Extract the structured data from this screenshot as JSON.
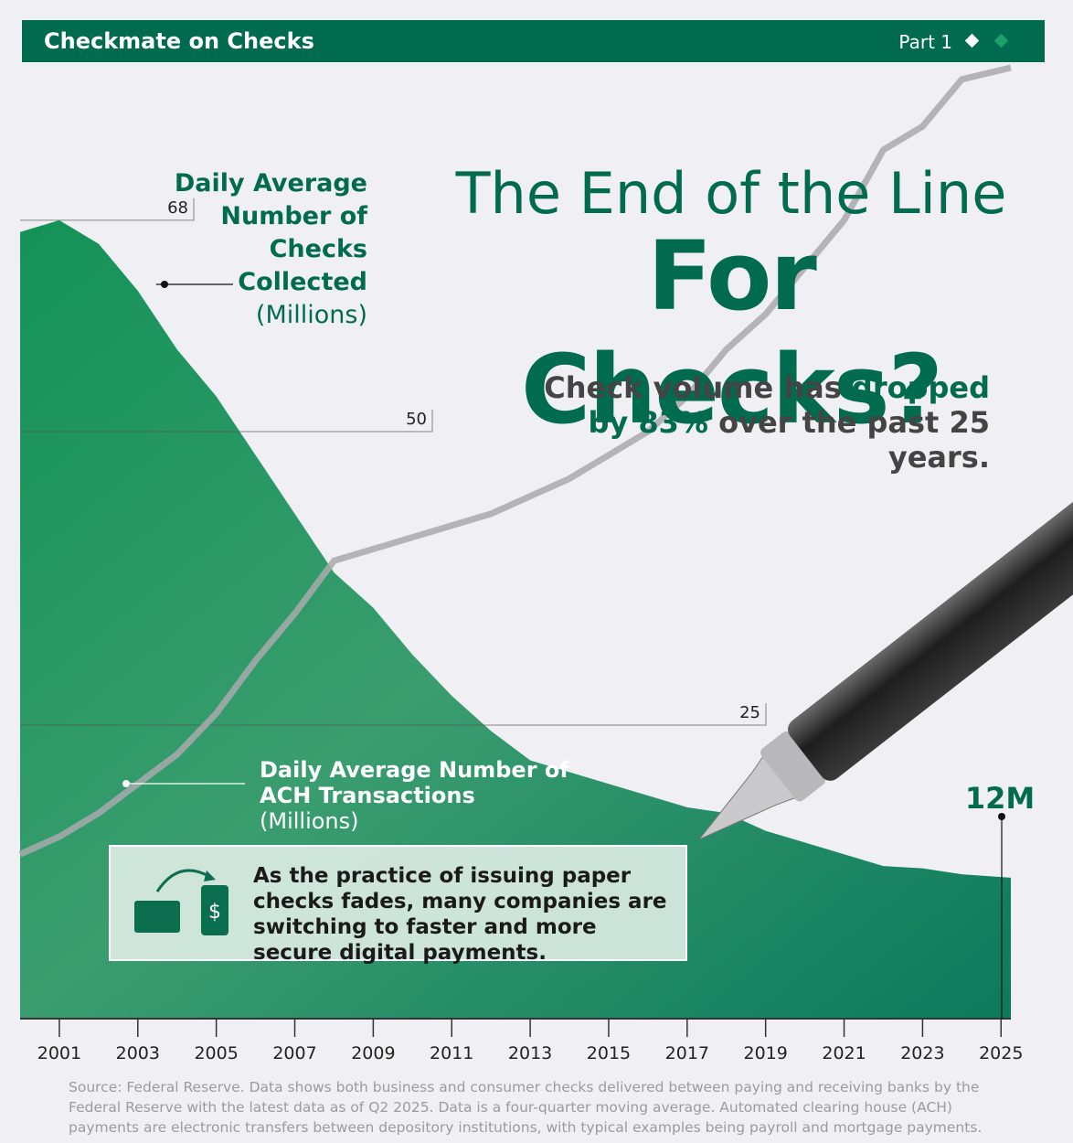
{
  "header": {
    "title": "Checkmate on Checks",
    "part": "Part 1"
  },
  "chart_data": {
    "type": "area",
    "title": [
      "The End of the Line",
      "For Checks?"
    ],
    "subtitle": [
      "Check volume has ",
      "dropped by",
      "83%",
      " over the past 25 years."
    ],
    "x": [
      2000,
      2001,
      2002,
      2003,
      2004,
      2005,
      2006,
      2007,
      2008,
      2009,
      2010,
      2011,
      2012,
      2013,
      2014,
      2015,
      2016,
      2017,
      2018,
      2019,
      2020,
      2021,
      2022,
      2023,
      2024,
      2025.25
    ],
    "series": [
      {
        "name": "Daily Average Number of Checks Collected",
        "unit": "(Millions)",
        "color": "#0e8a5a",
        "values": [
          67,
          68,
          66,
          62,
          57,
          53,
          48,
          43,
          38,
          35,
          31,
          27.5,
          24.5,
          22,
          21,
          20,
          19,
          18,
          17.5,
          16,
          15,
          14,
          13,
          12.8,
          12.3,
          12
        ],
        "value_labels": [
          null,
          null,
          null,
          null,
          null,
          null,
          null,
          null,
          null,
          null,
          null,
          null,
          null,
          null,
          null,
          null,
          null,
          null,
          null,
          null,
          null,
          null,
          null,
          null,
          null,
          "12M"
        ]
      },
      {
        "name": "Daily Average Number of ACH Transactions",
        "unit": "(Millions)",
        "color": "#a9a9ad",
        "values": [
          14,
          15.5,
          17.5,
          20,
          22.5,
          26,
          30.5,
          34.5,
          39,
          40,
          41,
          42,
          43,
          44.5,
          46,
          48,
          50,
          53,
          57,
          60,
          64,
          68,
          74,
          76,
          80,
          81
        ]
      }
    ],
    "xlim": [
      2000,
      2025.25
    ],
    "xticks": [
      2001,
      2003,
      2005,
      2007,
      2009,
      2011,
      2013,
      2015,
      2017,
      2019,
      2021,
      2023,
      2025
    ],
    "ylim": [
      0,
      81
    ],
    "yticks": [
      25,
      50,
      68
    ],
    "callout": "As the practice of issuing paper checks fades, many companies are switching to faster and more secure digital payments.",
    "source": "Source: Federal Reserve. Data shows both business and consumer checks delivered between paying and receiving banks by the Federal Reserve with the latest data as of Q2 2025. Data is a four-quarter moving average. Automated clearing house (ACH) payments are electronic transfers between depository institutions, with typical examples being payroll and mortgage payments."
  }
}
